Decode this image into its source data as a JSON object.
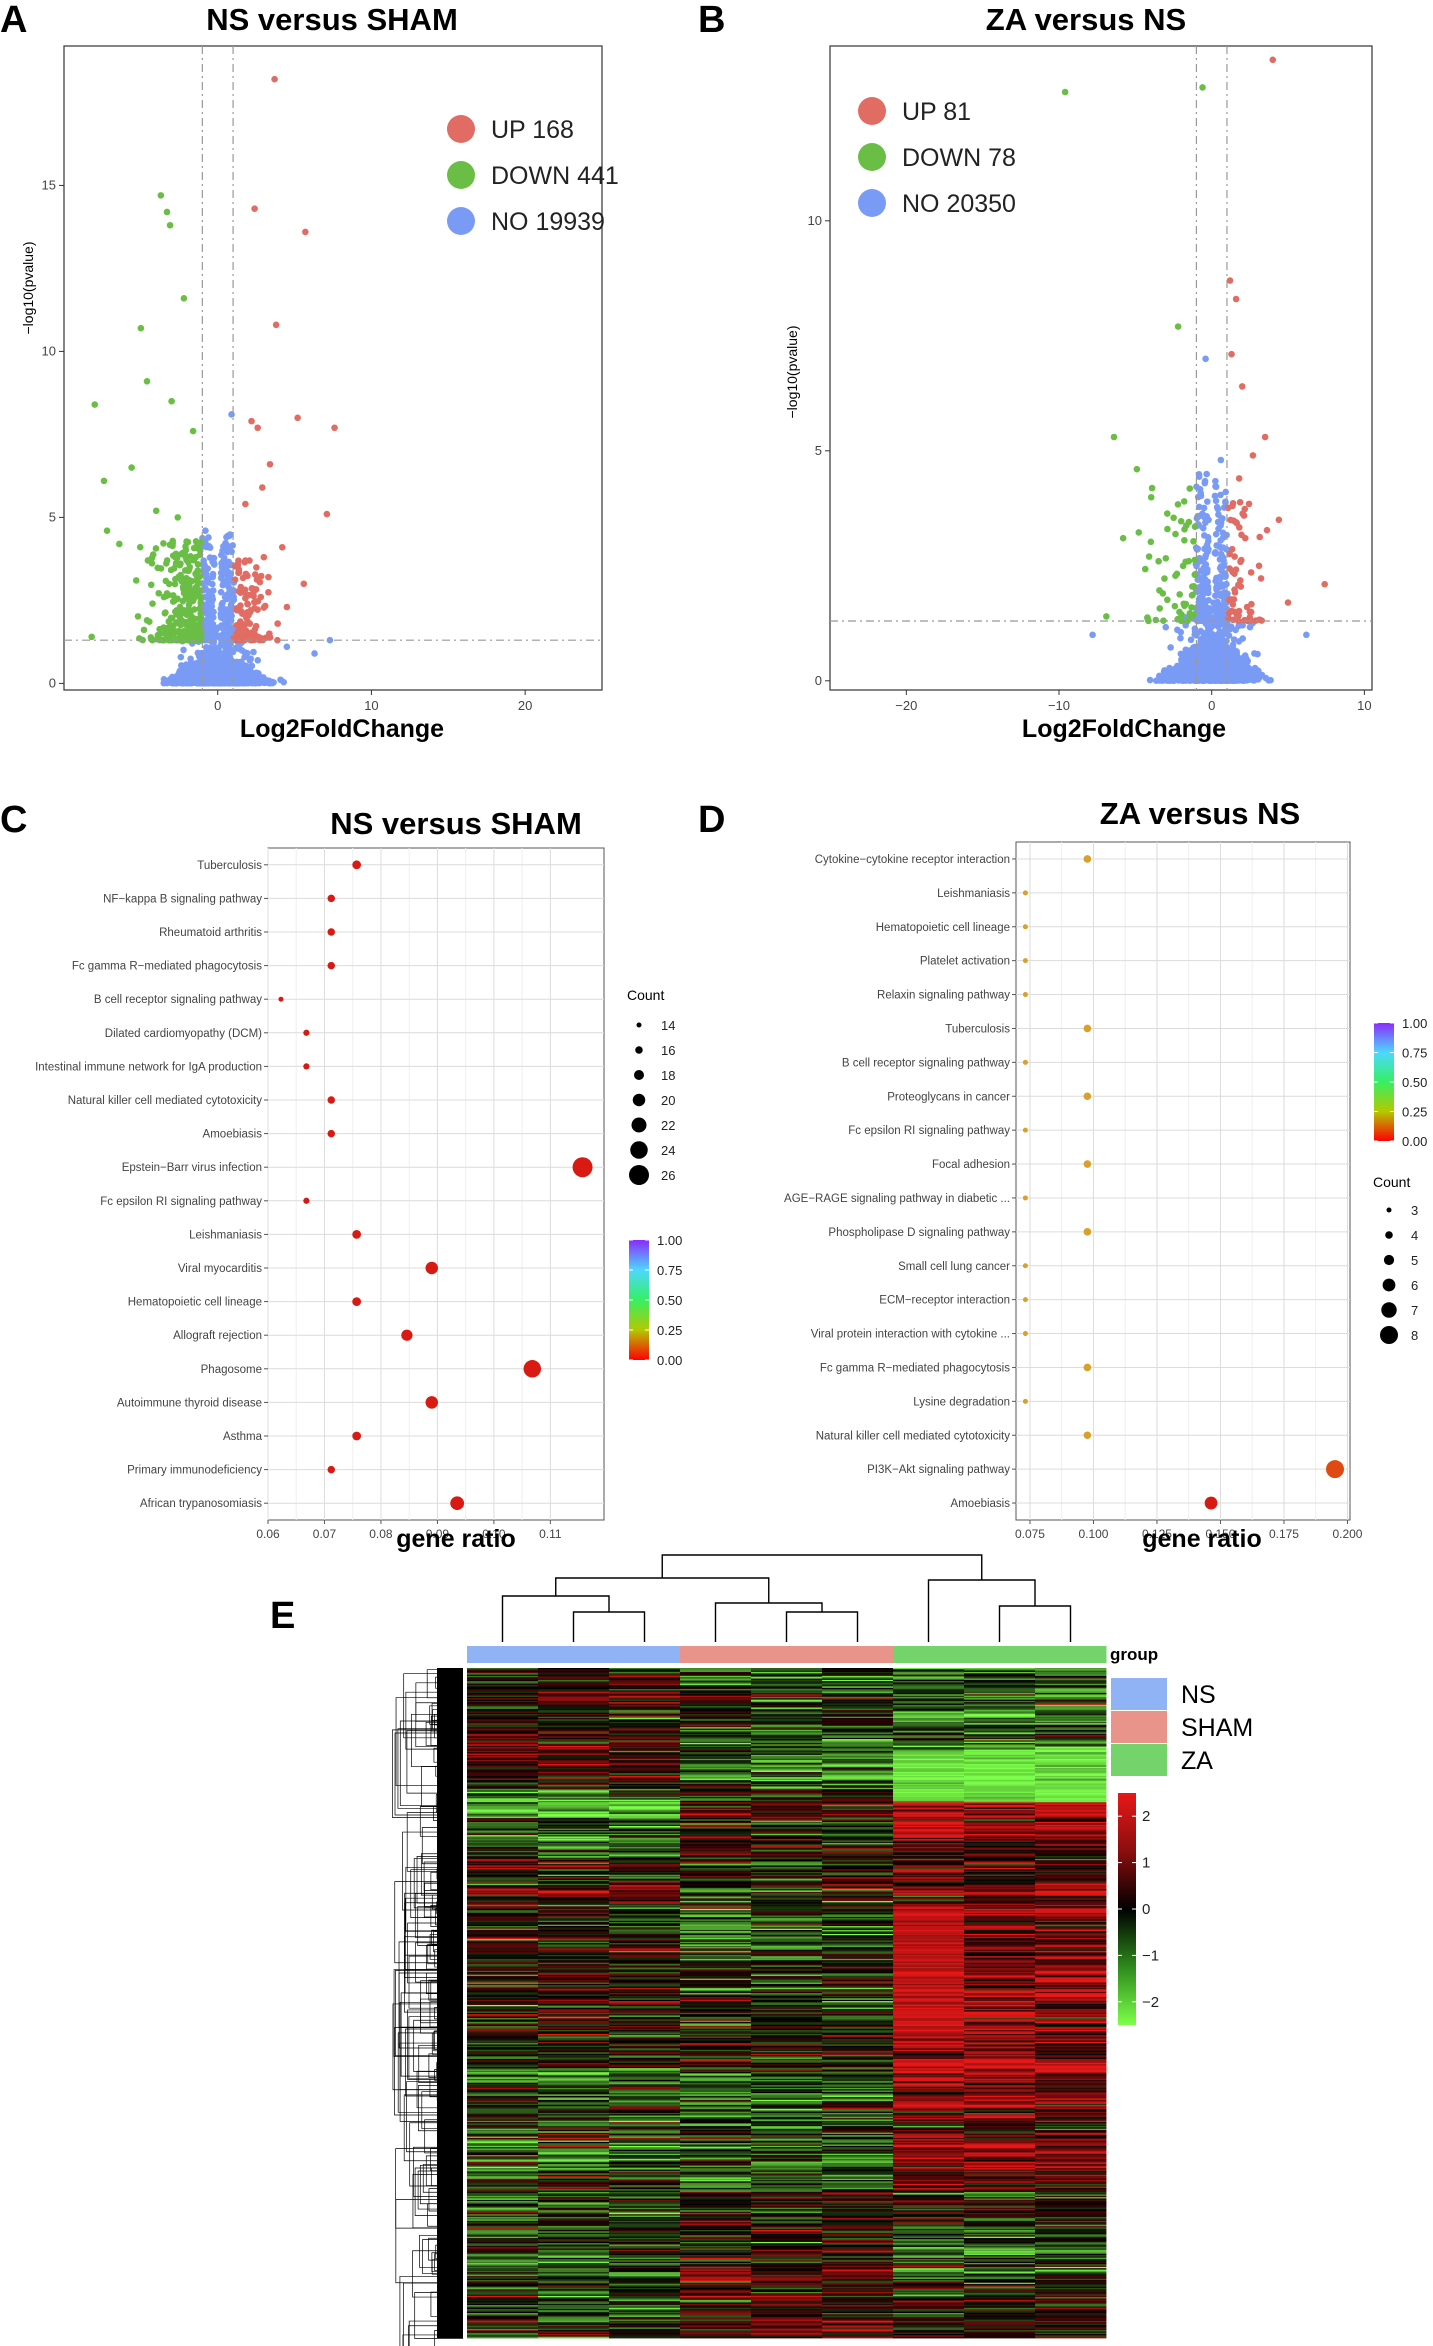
{
  "panel_labels": {
    "a": "A",
    "b": "B",
    "c": "C",
    "d": "D",
    "e": "E"
  },
  "colors": {
    "up": "#E06C63",
    "down": "#6BBE45",
    "no": "#7A9BF5",
    "dot_red": "#D61A1A"
  },
  "chart_data": [
    {
      "id": "A",
      "type": "scatter",
      "title": "NS versus SHAM",
      "xlabel": "Log2FoldChange",
      "ylabel": "−log10(pvalue)",
      "xlim": [
        -10,
        25
      ],
      "ylim": [
        -0.2,
        19.2
      ],
      "xticks": [
        0,
        10,
        20
      ],
      "yticks": [
        0,
        5,
        10,
        15
      ],
      "xtick_labels": [
        "0",
        "10",
        "20"
      ],
      "ytick_labels": [
        "0",
        "5",
        "10",
        "15"
      ],
      "threshold_x": [
        -1,
        1
      ],
      "threshold_y": 1.3,
      "legend": [
        {
          "label": "UP 168",
          "color": "#E06C63"
        },
        {
          "label": "DOWN 441",
          "color": "#6BBE45"
        },
        {
          "label": "NO 19939",
          "color": "#7A9BF5"
        }
      ],
      "points_up": [
        [
          3.7,
          18.2
        ],
        [
          2.4,
          14.3
        ],
        [
          5.7,
          13.6
        ],
        [
          3.8,
          10.8
        ],
        [
          7.6,
          7.7
        ],
        [
          5.2,
          8.0
        ],
        [
          2.2,
          7.9
        ],
        [
          2.6,
          7.7
        ],
        [
          7.1,
          5.1
        ],
        [
          3.4,
          6.6
        ],
        [
          2.9,
          5.9
        ],
        [
          1.8,
          5.4
        ],
        [
          4.2,
          4.1
        ],
        [
          3.0,
          3.8
        ],
        [
          5.6,
          3.0
        ],
        [
          2.8,
          2.6
        ],
        [
          1.6,
          2.1
        ],
        [
          4.5,
          2.3
        ],
        [
          3.9,
          1.8
        ],
        [
          2.1,
          1.5
        ],
        [
          1.5,
          2.9
        ],
        [
          3.3,
          3.2
        ]
      ],
      "points_down": [
        [
          -3.7,
          14.7
        ],
        [
          -3.3,
          14.2
        ],
        [
          -3.1,
          13.8
        ],
        [
          -2.2,
          11.6
        ],
        [
          -5.0,
          10.7
        ],
        [
          -4.6,
          9.1
        ],
        [
          -8.0,
          8.4
        ],
        [
          -3.0,
          8.5
        ],
        [
          -1.6,
          7.6
        ],
        [
          -7.4,
          6.1
        ],
        [
          -5.6,
          6.5
        ],
        [
          -7.2,
          4.6
        ],
        [
          -6.4,
          4.2
        ],
        [
          -4.0,
          5.2
        ],
        [
          -2.6,
          5.0
        ],
        [
          -5.3,
          3.1
        ],
        [
          -3.5,
          2.6
        ],
        [
          -8.2,
          1.4
        ],
        [
          -2.0,
          3.8
        ],
        [
          -1.4,
          2.9
        ],
        [
          -4.6,
          1.9
        ]
      ],
      "points_no": [
        [
          0.9,
          8.1
        ],
        [
          0.5,
          3.3
        ],
        [
          -0.8,
          4.6
        ],
        [
          0.2,
          2.1
        ],
        [
          6.3,
          0.9
        ],
        [
          7.3,
          1.3
        ],
        [
          4.5,
          1.1
        ]
      ]
    },
    {
      "id": "B",
      "type": "scatter",
      "title": "ZA versus NS",
      "xlabel": "Log2FoldChange",
      "ylabel": "−log10(pvalue)",
      "xlim": [
        -25,
        10.5
      ],
      "ylim": [
        -0.2,
        13.8
      ],
      "xticks": [
        -20,
        -10,
        0,
        10
      ],
      "yticks": [
        0,
        5,
        10
      ],
      "xtick_labels": [
        "−20",
        "−10",
        "0",
        "10"
      ],
      "ytick_labels": [
        "0",
        "5",
        "10"
      ],
      "threshold_x": [
        -1,
        1
      ],
      "threshold_y": 1.3,
      "legend": [
        {
          "label": "UP 81",
          "color": "#E06C63"
        },
        {
          "label": "DOWN 78",
          "color": "#6BBE45"
        },
        {
          "label": "NO 20350",
          "color": "#7A9BF5"
        }
      ],
      "points_up": [
        [
          4.0,
          13.5
        ],
        [
          1.2,
          8.7
        ],
        [
          1.6,
          8.3
        ],
        [
          1.3,
          7.1
        ],
        [
          2.0,
          6.4
        ],
        [
          3.5,
          5.3
        ],
        [
          2.7,
          4.9
        ],
        [
          1.8,
          4.4
        ],
        [
          4.4,
          3.5
        ],
        [
          2.2,
          3.1
        ],
        [
          3.1,
          2.5
        ],
        [
          7.4,
          2.1
        ],
        [
          1.5,
          2.7
        ],
        [
          5.0,
          1.7
        ],
        [
          2.5,
          1.5
        ]
      ],
      "points_down": [
        [
          -9.6,
          12.8
        ],
        [
          -0.6,
          12.9
        ],
        [
          -2.2,
          7.7
        ],
        [
          -6.4,
          5.3
        ],
        [
          -4.9,
          4.6
        ],
        [
          -2.9,
          3.3
        ],
        [
          -1.8,
          3.9
        ],
        [
          -5.8,
          3.1
        ],
        [
          -4.1,
          2.7
        ],
        [
          -6.9,
          1.4
        ],
        [
          -3.2,
          1.9
        ],
        [
          -1.5,
          2.6
        ]
      ],
      "points_no": [
        [
          -0.4,
          7.0
        ],
        [
          0.6,
          4.8
        ],
        [
          -0.2,
          3.5
        ],
        [
          -7.8,
          1.0
        ],
        [
          6.2,
          1.0
        ]
      ]
    },
    {
      "id": "C",
      "type": "scatter",
      "title": "NS versus SHAM",
      "xlabel": "gene ratio",
      "xlim": [
        0.06,
        0.1195
      ],
      "xticks": [
        0.06,
        0.07,
        0.08,
        0.09,
        0.1,
        0.11
      ],
      "xtick_labels": [
        "0.06",
        "0.07",
        "0.08",
        "0.09",
        "0.10",
        "0.11"
      ],
      "categories": [
        "Tuberculosis",
        "NF−kappa B signaling pathway",
        "Rheumatoid arthritis",
        "Fc gamma R−mediated phagocytosis",
        "B cell receptor signaling pathway",
        "Dilated cardiomyopathy (DCM)",
        "Intestinal immune network for IgA production",
        "Natural killer cell mediated cytotoxicity",
        "Amoebiasis",
        "Epstein−Barr virus infection",
        "Fc epsilon RI signaling pathway",
        "Leishmaniasis",
        "Viral myocarditis",
        "Hematopoietic cell lineage",
        "Allograft rejection",
        "Phagosome",
        "Autoimmune thyroid disease",
        "Asthma",
        "Primary immunodeficiency",
        "African trypanosomiasis"
      ],
      "gene_ratio": [
        0.0757,
        0.0712,
        0.0712,
        0.0712,
        0.0623,
        0.0668,
        0.0668,
        0.0712,
        0.0712,
        0.1157,
        0.0668,
        0.0757,
        0.089,
        0.0757,
        0.0846,
        0.1068,
        0.089,
        0.0757,
        0.0712,
        0.0935
      ],
      "count": [
        17,
        16,
        16,
        16,
        14,
        15,
        15,
        16,
        16,
        26,
        15,
        17,
        20,
        17,
        19,
        24,
        20,
        17,
        16,
        21
      ],
      "color_values": [
        0.02,
        0.01,
        0.01,
        0.01,
        0.02,
        0.01,
        0.01,
        0.02,
        0.01,
        0.02,
        0.01,
        0.01,
        0.01,
        0.01,
        0.01,
        0.01,
        0.01,
        0.02,
        0.01,
        0.01
      ],
      "size_legend_title": "Count",
      "size_legend": [
        14,
        16,
        18,
        20,
        22,
        24,
        26
      ],
      "color_legend": [
        "1.00",
        "0.75",
        "0.50",
        "0.25",
        "0.00"
      ]
    },
    {
      "id": "D",
      "type": "scatter",
      "title": "ZA versus NS",
      "xlabel": "gene ratio",
      "xlim": [
        0.0695,
        0.201
      ],
      "xticks": [
        0.075,
        0.1,
        0.125,
        0.15,
        0.175,
        0.2
      ],
      "xtick_labels": [
        "0.075",
        "0.100",
        "0.125",
        "0.150",
        "0.175",
        "0.200"
      ],
      "categories": [
        "Cytokine−cytokine receptor interaction",
        "Leishmaniasis",
        "Hematopoietic cell lineage",
        "Platelet activation",
        "Relaxin signaling pathway",
        "Tuberculosis",
        "B cell receptor signaling pathway",
        "Proteoglycans in cancer",
        "Fc epsilon RI signaling pathway",
        "Focal adhesion",
        "AGE−RAGE signaling pathway in diabetic ...",
        "Phospholipase D signaling pathway",
        "Small cell lung cancer",
        "ECM−receptor interaction",
        "Viral protein interaction with cytokine ...",
        "Fc gamma R−mediated phagocytosis",
        "Lysine degradation",
        "Natural killer cell mediated cytotoxicity",
        "PI3K−Akt signaling pathway",
        "Amoebiasis"
      ],
      "gene_ratio": [
        0.0976,
        0.0732,
        0.0732,
        0.0732,
        0.0732,
        0.0976,
        0.0732,
        0.0976,
        0.0732,
        0.0976,
        0.0732,
        0.0976,
        0.0732,
        0.0732,
        0.0732,
        0.0976,
        0.0732,
        0.0976,
        0.1951,
        0.1463
      ],
      "count": [
        4,
        3,
        3,
        3,
        3,
        4,
        3,
        4,
        3,
        4,
        3,
        4,
        3,
        3,
        3,
        4,
        3,
        4,
        8,
        6
      ],
      "color_values": [
        0.28,
        0.28,
        0.28,
        0.28,
        0.28,
        0.28,
        0.28,
        0.28,
        0.28,
        0.28,
        0.28,
        0.28,
        0.28,
        0.28,
        0.28,
        0.28,
        0.28,
        0.28,
        0.1,
        0.02
      ],
      "size_legend_title": "Count",
      "size_legend": [
        3,
        4,
        5,
        6,
        7,
        8
      ],
      "color_legend": [
        "1.00",
        "0.75",
        "0.50",
        "0.25",
        "0.00"
      ]
    },
    {
      "id": "E",
      "type": "heatmap",
      "annotation_title": "group",
      "groups": [
        {
          "label": "NS",
          "color": "#8FB3F4"
        },
        {
          "label": "SHAM",
          "color": "#E9948A"
        },
        {
          "label": "ZA",
          "color": "#74D36A"
        }
      ],
      "n_columns": 9,
      "n_rows": 509,
      "column_groups": [
        "NS",
        "NS",
        "NS",
        "SHAM",
        "SHAM",
        "SHAM",
        "ZA",
        "ZA",
        "ZA"
      ],
      "scale_range": [
        -2.5,
        2.5
      ],
      "scale_ticks": [
        2,
        1,
        0,
        -1,
        -2
      ],
      "scale_tick_labels": [
        "2",
        "1",
        "0",
        "−1",
        "−2"
      ]
    }
  ]
}
